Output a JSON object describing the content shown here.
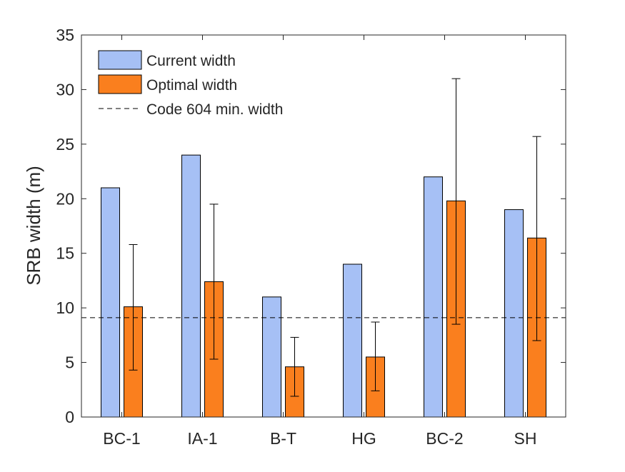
{
  "chart_data": {
    "type": "bar",
    "title": "",
    "xlabel": "",
    "ylabel": "SRB width (m)",
    "ylim": [
      0,
      35
    ],
    "yticks": [
      0,
      5,
      10,
      15,
      20,
      25,
      30,
      35
    ],
    "grid": false,
    "legend_position": "top-left",
    "categories": [
      "BC-1",
      "IA-1",
      "B-T",
      "HG",
      "BC-2",
      "SH"
    ],
    "series": [
      {
        "name": "Current width",
        "color": "#a6c0f5",
        "values": [
          21,
          24,
          11,
          14,
          22,
          19
        ]
      },
      {
        "name": "Optimal width",
        "color": "#fa7f1e",
        "values": [
          10.1,
          12.4,
          4.6,
          5.5,
          19.8,
          16.4
        ],
        "error_low": [
          4.3,
          5.3,
          1.9,
          2.4,
          8.5,
          7.0
        ],
        "error_high": [
          15.8,
          19.5,
          7.3,
          8.7,
          31.0,
          25.7
        ]
      }
    ],
    "reference_line": {
      "name": "Code 604 min. width",
      "value": 9.1,
      "style": "dashed"
    }
  }
}
